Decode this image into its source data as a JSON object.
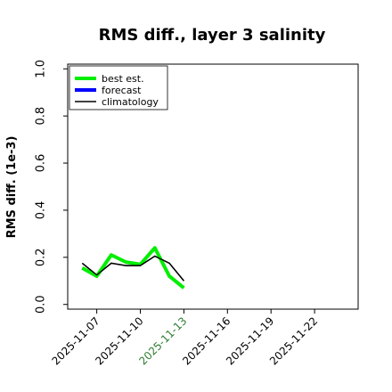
{
  "chart_data": {
    "type": "line",
    "title": "RMS diff., layer 3 salinity",
    "xlabel": "",
    "ylabel": "RMS diff. (1e-3)",
    "ylim": [
      -0.02,
      1.02
    ],
    "xlim": [
      "2025-11-05",
      "2025-11-25"
    ],
    "yticks": [
      0.0,
      0.2,
      0.4,
      0.6,
      0.8,
      1.0
    ],
    "ytick_labels": [
      "0.0",
      "0.2",
      "0.4",
      "0.6",
      "0.8",
      "1.0"
    ],
    "xticks": [
      "2025-11-07",
      "2025-11-10",
      "2025-11-13",
      "2025-11-16",
      "2025-11-19",
      "2025-11-22"
    ],
    "xtick_labels": [
      "2025-11-07",
      "2025-11-10",
      "2025-11-13",
      "2025-11-16",
      "2025-11-19",
      "2025-11-22"
    ],
    "highlighted_tick": "2025-11-13",
    "highlight_color": "#2e7d32",
    "grid": false,
    "legend_position": "top-left",
    "series": [
      {
        "name": "best est.",
        "color": "#00ee00",
        "x": [
          "2025-11-07",
          "2025-11-08",
          "2025-11-09",
          "2025-11-10",
          "2025-11-11",
          "2025-11-12",
          "2025-11-13"
        ],
        "values": [
          0.12,
          0.21,
          0.18,
          0.17,
          0.24,
          0.12,
          0.07
        ]
      },
      {
        "name": "forecast",
        "color": "#0000ff",
        "x": [],
        "values": []
      },
      {
        "name": "climatology",
        "color": "#000000",
        "x": [
          "2025-11-06",
          "2025-11-07",
          "2025-11-08",
          "2025-11-09",
          "2025-11-10",
          "2025-11-11",
          "2025-11-12",
          "2025-11-13"
        ],
        "values": [
          0.175,
          0.125,
          0.175,
          0.165,
          0.165,
          0.205,
          0.175,
          0.1
        ]
      }
    ],
    "best_est_start_point": {
      "x": "2025-11-06",
      "value": 0.155
    }
  }
}
